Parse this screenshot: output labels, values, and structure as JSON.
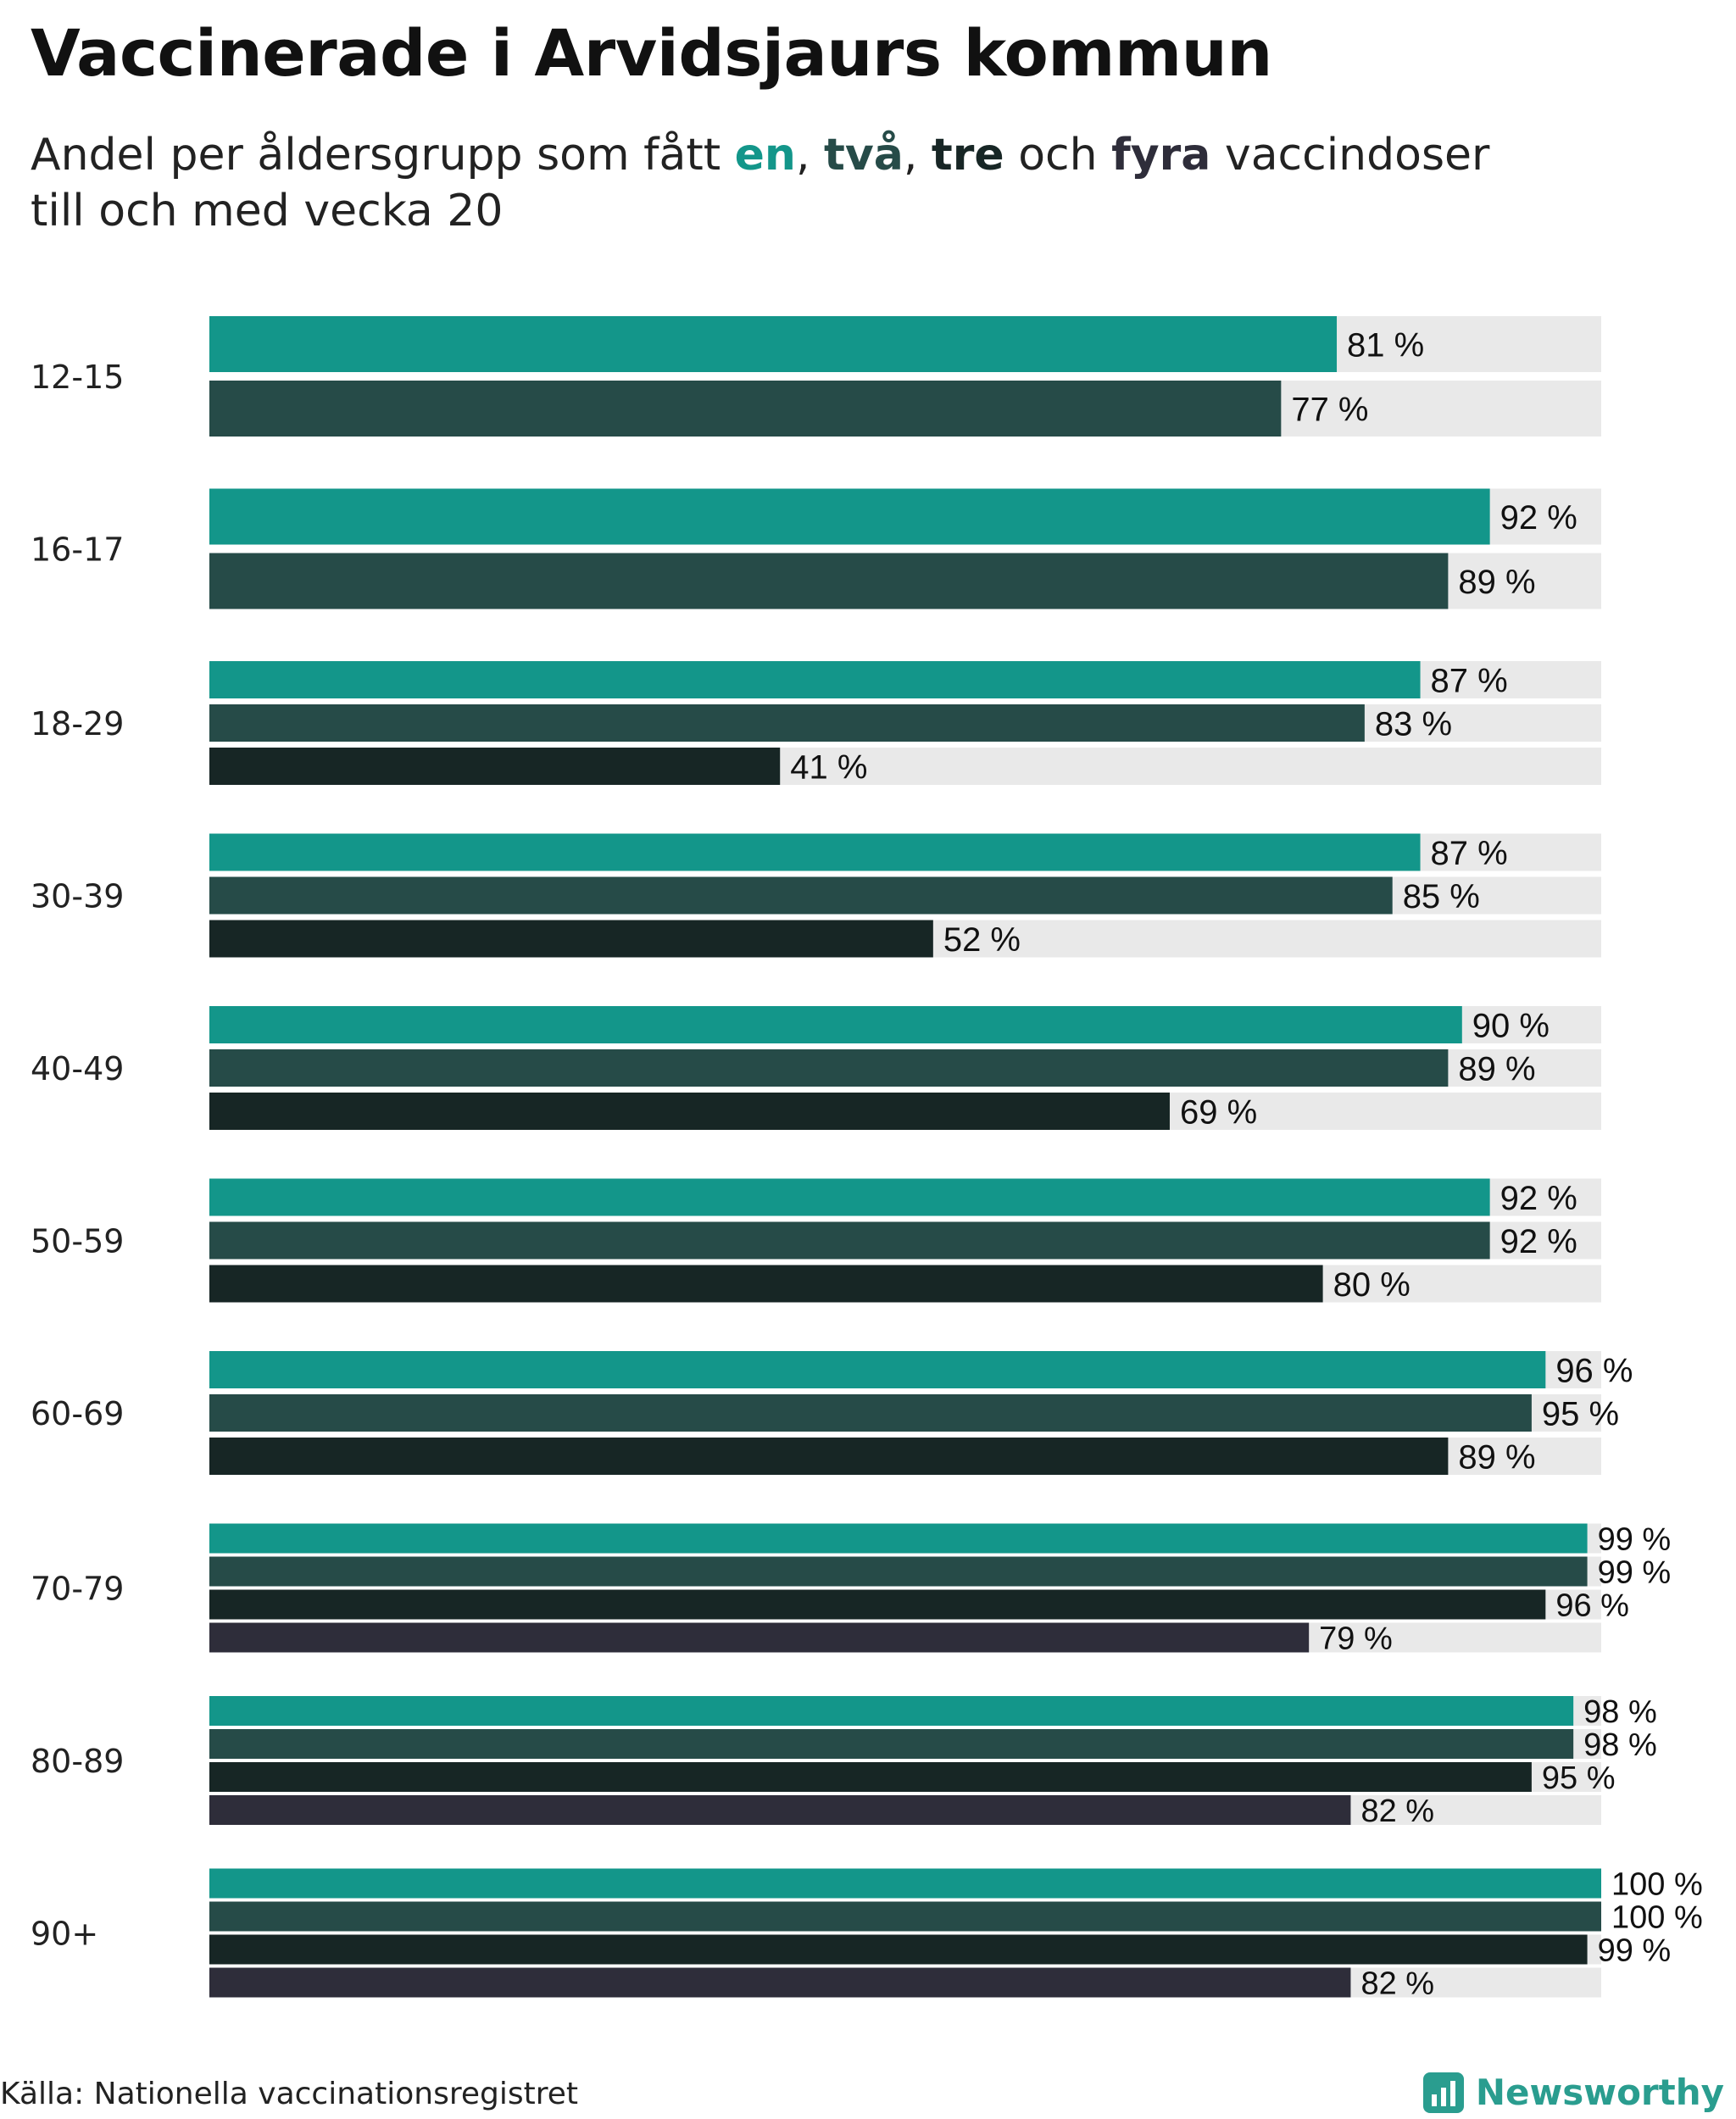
{
  "title": "Vaccinerade i Arvidsjaurs kommun",
  "subtitle": {
    "prefix": "Andel per åldersgrupp som fått ",
    "en": "en",
    "sep1": ", ",
    "tva": "två",
    "sep2": ", ",
    "tre": "tre",
    "och": " och ",
    "fyra": "fyra",
    "suffix": " vaccindoser",
    "line2": "till och med vecka 20"
  },
  "source": "Källa: Nationella vaccinationsregistret",
  "brand": {
    "name": "Newsworthy",
    "icon": "newsworthy-logo-icon"
  },
  "colors": {
    "en": "#13968a",
    "tva": "#264b48",
    "tre": "#172625",
    "fyra": "#2e2d3a",
    "track": "#e9e9e9",
    "brand": "#2a9d8f"
  },
  "chart_data": {
    "type": "bar",
    "orientation": "horizontal",
    "xlim": [
      0,
      100
    ],
    "value_suffix": " %",
    "categories": [
      "12-15",
      "16-17",
      "18-29",
      "30-39",
      "40-49",
      "50-59",
      "60-69",
      "70-79",
      "80-89",
      "90+"
    ],
    "series": [
      {
        "key": "en",
        "values": [
          81,
          92,
          87,
          87,
          90,
          92,
          96,
          99,
          98,
          100
        ]
      },
      {
        "key": "tva",
        "values": [
          77,
          89,
          83,
          85,
          89,
          92,
          95,
          99,
          98,
          100
        ]
      },
      {
        "key": "tre",
        "values": [
          null,
          null,
          41,
          52,
          69,
          80,
          89,
          96,
          95,
          99
        ]
      },
      {
        "key": "fyra",
        "values": [
          null,
          null,
          null,
          null,
          null,
          null,
          null,
          79,
          82,
          82
        ]
      }
    ]
  }
}
